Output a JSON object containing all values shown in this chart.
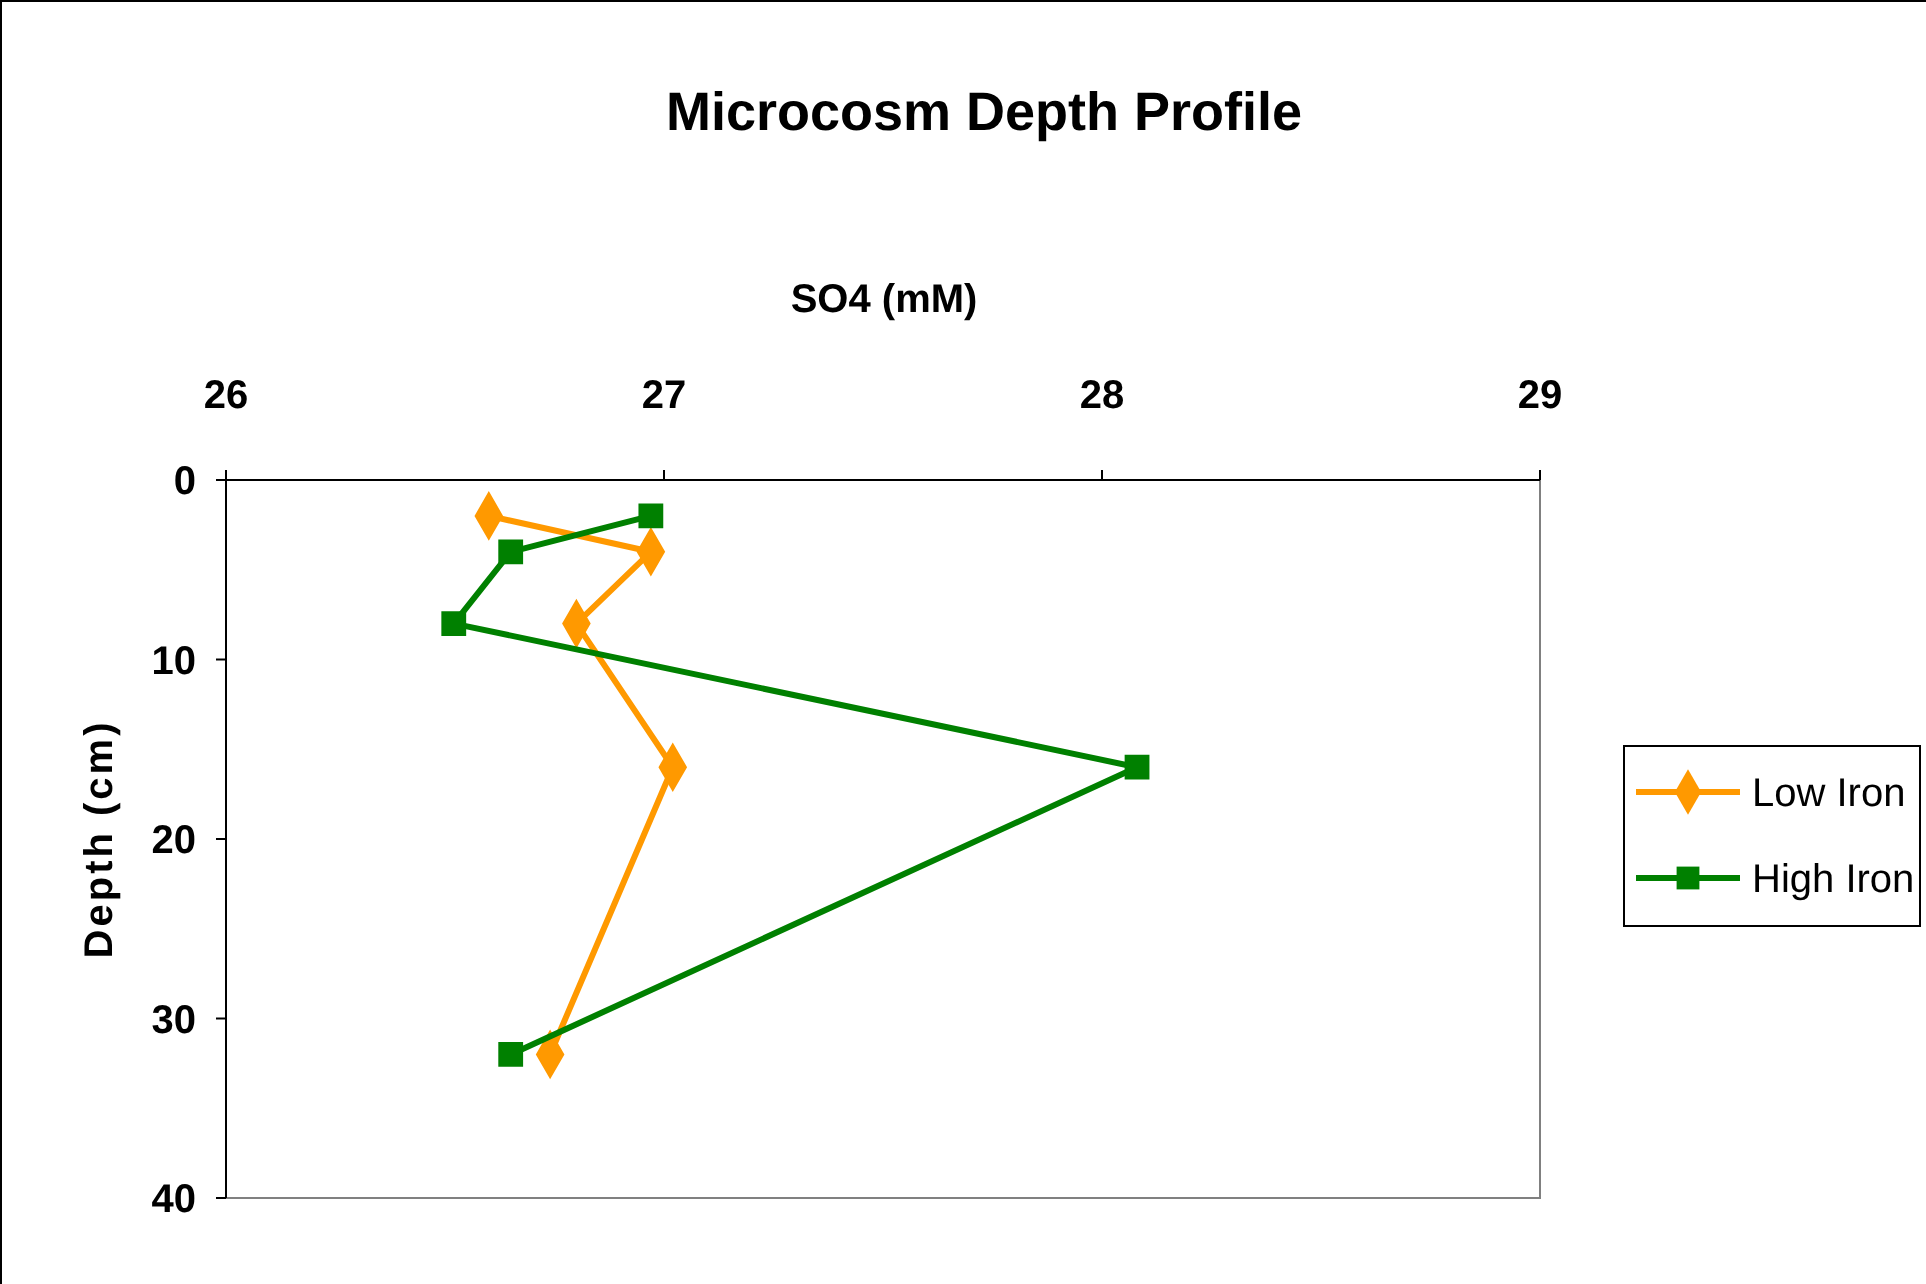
{
  "chart_data": {
    "type": "line",
    "title": "Microcosm Depth Profile",
    "xlabel": "SO4 (mM)",
    "ylabel": "Depth (cm)",
    "xlim": [
      26,
      29
    ],
    "xticks": [
      26,
      27,
      28,
      29
    ],
    "ylim": [
      40,
      0
    ],
    "yticks": [
      0,
      10,
      20,
      30,
      40
    ],
    "grid": false,
    "legend": "right",
    "line_style": "solid",
    "series": [
      {
        "name": "Low Iron",
        "color": "#ff9900",
        "marker": "diamond",
        "x": [
          26.6,
          26.97,
          26.8,
          27.02,
          26.74
        ],
        "values": [
          2,
          4,
          8,
          16,
          32
        ]
      },
      {
        "name": "High Iron",
        "color": "#008000",
        "marker": "square",
        "x": [
          26.97,
          26.65,
          26.52,
          28.08,
          26.65
        ],
        "values": [
          2,
          4,
          8,
          16,
          32
        ]
      }
    ]
  }
}
